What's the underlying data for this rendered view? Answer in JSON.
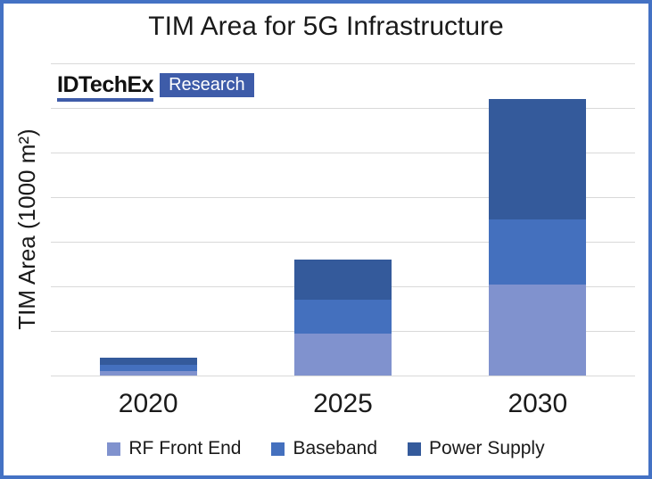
{
  "title": "TIM Area for 5G Infrastructure",
  "logo": {
    "brand": "IDTechEx",
    "suffix": "Research",
    "accent_color": "#3E5CA9"
  },
  "frame": {
    "border_color": "#4472C4"
  },
  "chart_data": {
    "type": "bar",
    "stacked": true,
    "title": "TIM Area for 5G Infrastructure",
    "categories": [
      "2020",
      "2025",
      "2030"
    ],
    "series": [
      {
        "name": "RF Front End",
        "color": "#8092CE",
        "values": [
          0.1,
          0.95,
          2.05
        ]
      },
      {
        "name": "Baseband",
        "color": "#4470BE",
        "values": [
          0.15,
          0.75,
          1.45
        ]
      },
      {
        "name": "Power Supply",
        "color": "#345A9B",
        "values": [
          0.15,
          0.9,
          2.7
        ]
      }
    ],
    "totals": [
      0.4,
      2.6,
      6.2
    ],
    "xlabel": "",
    "ylabel": "TIM Area (1000 m²)",
    "ylim": [
      0,
      7
    ],
    "gridline_interval": 1,
    "gridline_count": 8,
    "gridline_color": "#D9D9D9",
    "y_tick_labels_visible": false,
    "grid": true,
    "legend_position": "bottom"
  }
}
